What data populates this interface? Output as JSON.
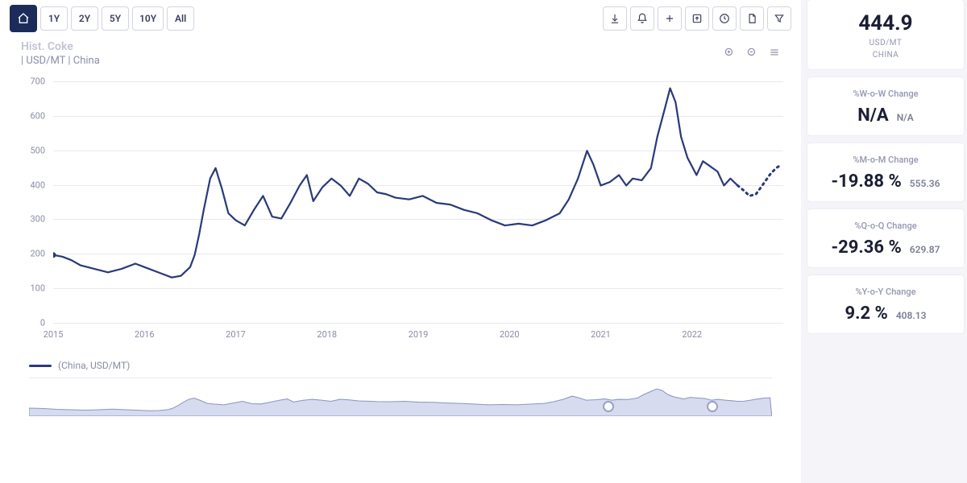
{
  "toolbar": {
    "ranges": [
      "1Y",
      "2Y",
      "5Y",
      "10Y",
      "All"
    ]
  },
  "subheader": {
    "title_faded": "Hist. Coke",
    "line2": " | USD/MT | China"
  },
  "legend": {
    "text": "(China, USD/MT)"
  },
  "side": {
    "top": {
      "value": "444.9",
      "unit": "USD/MT",
      "region": "CHINA"
    },
    "wow": {
      "title": "%W-o-W Change",
      "value": "N/A",
      "aux": "N/A"
    },
    "mom": {
      "title": "%M-o-M Change",
      "value": "-19.88 %",
      "aux": "555.36"
    },
    "qoq": {
      "title": "%Q-o-Q Change",
      "value": "-29.36 %",
      "aux": "629.87"
    },
    "yoy": {
      "title": "%Y-o-Y Change",
      "value": "9.2 %",
      "aux": "408.13"
    }
  },
  "chart": {
    "type": "line",
    "line_color": "#2a3a7a",
    "line_width": 2.2,
    "forecast_dash": "2 5",
    "grid_color": "#e8e9f2",
    "axis_color": "#8a8da6",
    "background_color": "#ffffff",
    "tick_fontsize": 11,
    "ylim": [
      0,
      700
    ],
    "ytick_step": 100,
    "x_labels": [
      "2015",
      "2016",
      "2017",
      "2018",
      "2019",
      "2020",
      "2021",
      "2022"
    ],
    "x_min": 2015.0,
    "x_max": 2023.0,
    "data": [
      [
        2015.0,
        200
      ],
      [
        2015.1,
        195
      ],
      [
        2015.2,
        185
      ],
      [
        2015.3,
        170
      ],
      [
        2015.45,
        160
      ],
      [
        2015.6,
        150
      ],
      [
        2015.75,
        160
      ],
      [
        2015.9,
        175
      ],
      [
        2016.0,
        165
      ],
      [
        2016.15,
        150
      ],
      [
        2016.3,
        135
      ],
      [
        2016.4,
        140
      ],
      [
        2016.5,
        165
      ],
      [
        2016.55,
        200
      ],
      [
        2016.6,
        260
      ],
      [
        2016.65,
        330
      ],
      [
        2016.72,
        420
      ],
      [
        2016.78,
        450
      ],
      [
        2016.85,
        390
      ],
      [
        2016.92,
        320
      ],
      [
        2017.0,
        300
      ],
      [
        2017.1,
        285
      ],
      [
        2017.2,
        330
      ],
      [
        2017.3,
        370
      ],
      [
        2017.4,
        310
      ],
      [
        2017.5,
        305
      ],
      [
        2017.6,
        350
      ],
      [
        2017.7,
        400
      ],
      [
        2017.78,
        430
      ],
      [
        2017.85,
        355
      ],
      [
        2017.95,
        395
      ],
      [
        2018.05,
        420
      ],
      [
        2018.15,
        400
      ],
      [
        2018.25,
        370
      ],
      [
        2018.35,
        420
      ],
      [
        2018.45,
        405
      ],
      [
        2018.55,
        380
      ],
      [
        2018.65,
        375
      ],
      [
        2018.75,
        365
      ],
      [
        2018.9,
        360
      ],
      [
        2019.05,
        370
      ],
      [
        2019.2,
        350
      ],
      [
        2019.35,
        345
      ],
      [
        2019.5,
        330
      ],
      [
        2019.65,
        320
      ],
      [
        2019.8,
        300
      ],
      [
        2019.95,
        285
      ],
      [
        2020.1,
        290
      ],
      [
        2020.25,
        285
      ],
      [
        2020.4,
        300
      ],
      [
        2020.55,
        320
      ],
      [
        2020.65,
        360
      ],
      [
        2020.75,
        420
      ],
      [
        2020.85,
        500
      ],
      [
        2020.92,
        460
      ],
      [
        2021.0,
        400
      ],
      [
        2021.1,
        410
      ],
      [
        2021.2,
        430
      ],
      [
        2021.28,
        400
      ],
      [
        2021.35,
        420
      ],
      [
        2021.45,
        415
      ],
      [
        2021.55,
        450
      ],
      [
        2021.62,
        540
      ],
      [
        2021.7,
        620
      ],
      [
        2021.76,
        680
      ],
      [
        2021.82,
        640
      ],
      [
        2021.88,
        540
      ],
      [
        2021.95,
        480
      ],
      [
        2022.05,
        430
      ],
      [
        2022.12,
        470
      ],
      [
        2022.2,
        455
      ],
      [
        2022.28,
        440
      ],
      [
        2022.35,
        400
      ],
      [
        2022.42,
        420
      ],
      [
        2022.5,
        400
      ]
    ],
    "forecast": [
      [
        2022.5,
        400
      ],
      [
        2022.57,
        385
      ],
      [
        2022.63,
        370
      ],
      [
        2022.7,
        375
      ],
      [
        2022.77,
        400
      ],
      [
        2022.85,
        430
      ],
      [
        2022.92,
        450
      ],
      [
        2022.98,
        460
      ]
    ]
  },
  "navigator": {
    "fill": "#d6dbef",
    "stroke": "#8b95c4",
    "handle_left_pct": 78,
    "handle_right_pct": 92
  }
}
